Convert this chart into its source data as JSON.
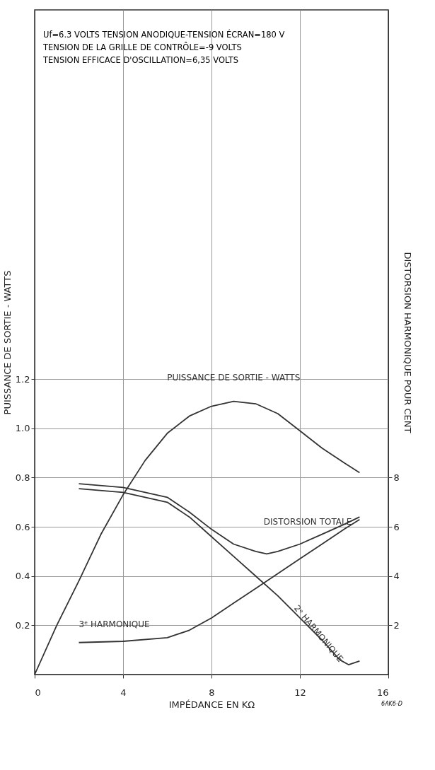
{
  "chart_data": {
    "type": "line",
    "annotations": [
      "Uf=6.3 VOLTS  TENSION ANODIQUE-TENSION ÉCRAN=180 V",
      "TENSION DE LA GRILLE DE CONTRÔLE=-9 VOLTS",
      "TENSION EFFICACE D'OSCILLATION=6,35 VOLTS",
      "6AK6-D"
    ],
    "xlabel": "IMPÉDANCE EN KΩ",
    "ylabel": "PUISSANCE DE SORTIE - WATTS",
    "y2label": "DISTORSION  HARMONIQUE  POUR  CENT",
    "xlim": [
      0,
      16
    ],
    "xticks": [
      0,
      4,
      8,
      12,
      16
    ],
    "ylim": [
      0,
      2.7
    ],
    "yticks": [
      0.2,
      0.4,
      0.6,
      0.8,
      {
        "value": 1.0,
        "label": "1.0"
      },
      1.2
    ],
    "y2lim": [
      0,
      27
    ],
    "y2ticks": [
      2,
      4,
      6,
      8
    ],
    "grid": true,
    "line_style": "solid",
    "series": [
      {
        "name": "PUISSANCE DE SORTIE - WATTS",
        "color": "#333333",
        "x": [
          0,
          1,
          2,
          3,
          4,
          5,
          6,
          7,
          8,
          9,
          10,
          11,
          12,
          13,
          14,
          14.7
        ],
        "values": [
          0,
          0.2,
          0.38,
          0.57,
          0.73,
          0.87,
          0.98,
          1.05,
          1.09,
          1.11,
          1.1,
          1.06,
          0.99,
          0.92,
          0.86,
          0.82
        ]
      },
      {
        "name": "DISTORSION TOTALE",
        "color": "#333333",
        "axis": "y2",
        "x": [
          2,
          4,
          6,
          7,
          8,
          9,
          10,
          10.5,
          11,
          12,
          13,
          14,
          14.7
        ],
        "values": [
          7.75,
          7.6,
          7.2,
          6.6,
          5.9,
          5.3,
          5.0,
          4.9,
          5.0,
          5.3,
          5.7,
          6.1,
          6.4
        ]
      },
      {
        "name": "2ᵉ HARMONIQUE",
        "color": "#333333",
        "axis": "y2",
        "x": [
          2,
          4,
          6,
          7,
          8,
          9,
          10,
          11,
          12,
          13,
          13.8,
          14.2,
          14.7
        ],
        "values": [
          7.55,
          7.4,
          7.0,
          6.4,
          5.6,
          4.8,
          4.0,
          3.2,
          2.3,
          1.4,
          0.6,
          0.4,
          0.55
        ]
      },
      {
        "name": "3ᵉ HARMONIQUE",
        "color": "#333333",
        "axis": "y2",
        "x": [
          2,
          4,
          6,
          7,
          8,
          9,
          10,
          11,
          12,
          13,
          14,
          14.7
        ],
        "values": [
          1.3,
          1.35,
          1.5,
          1.8,
          2.3,
          2.9,
          3.5,
          4.1,
          4.7,
          5.3,
          5.9,
          6.3
        ]
      }
    ]
  }
}
